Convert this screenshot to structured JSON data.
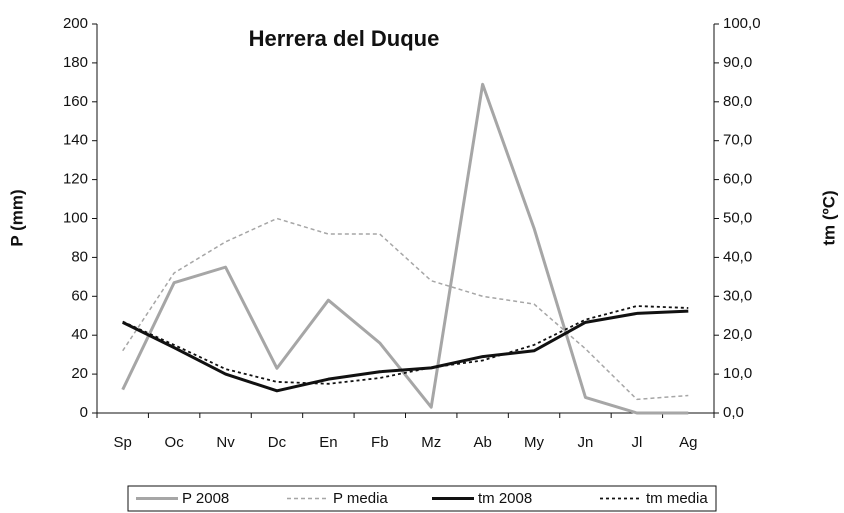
{
  "chart_data": {
    "type": "line",
    "title": "Herrera del Duque",
    "y_label": "P (mm)",
    "y2_label": "tm (ºC)",
    "categories": [
      "Sp",
      "Oc",
      "Nv",
      "Dc",
      "En",
      "Fb",
      "Mz",
      "Ab",
      "My",
      "Jn",
      "Jl",
      "Ag"
    ],
    "ylim": [
      0,
      200
    ],
    "yticks": [
      0,
      20,
      40,
      60,
      80,
      100,
      120,
      140,
      160,
      180,
      200
    ],
    "y2lim": [
      0,
      100
    ],
    "y2ticks": [
      {
        "value": 0,
        "label": "0,0"
      },
      {
        "value": 10,
        "label": "10,0"
      },
      {
        "value": 20,
        "label": "20,0"
      },
      {
        "value": 30,
        "label": "30,0"
      },
      {
        "value": 40,
        "label": "40,0"
      },
      {
        "value": 50,
        "label": "50,0"
      },
      {
        "value": 60,
        "label": "60,0"
      },
      {
        "value": 70,
        "label": "70,0"
      },
      {
        "value": 80,
        "label": "80,0"
      },
      {
        "value": 90,
        "label": "90,0"
      },
      {
        "value": 100,
        "label": "100,0"
      }
    ],
    "legend": "bottom",
    "series": [
      {
        "name": "P 2008",
        "color": "#a6a6a6",
        "values": [
          12,
          67,
          75,
          23,
          58,
          36,
          3,
          169,
          95,
          8,
          0,
          0
        ]
      },
      {
        "name": "P media",
        "color": "#a6a6a6",
        "values": [
          32,
          72,
          88,
          100,
          92,
          92,
          68,
          60,
          56,
          33,
          7,
          9
        ]
      },
      {
        "name": "tm 2008",
        "color": "#111111",
        "axis": "y2",
        "values": [
          23.3,
          16.8,
          10,
          5.7,
          8.7,
          10.6,
          11.6,
          14.5,
          16,
          23.3,
          25.6,
          26.2
        ]
      },
      {
        "name": "tm media",
        "color": "#111111",
        "axis": "y2",
        "values": [
          23.5,
          17.5,
          11.3,
          8,
          7.5,
          9,
          11.7,
          13.5,
          17.5,
          24,
          27.5,
          27
        ]
      }
    ]
  }
}
